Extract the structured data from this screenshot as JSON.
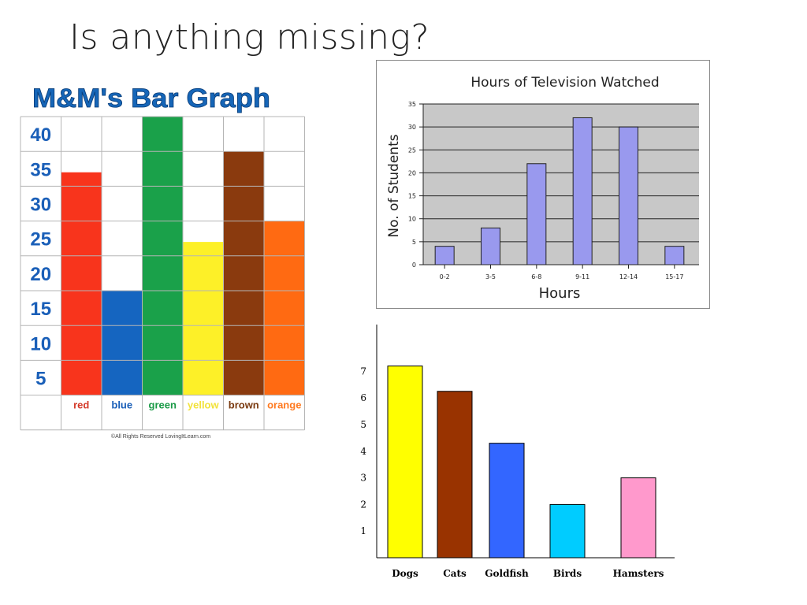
{
  "slide": {
    "title": "Is anything missing?"
  },
  "chart_data": [
    {
      "type": "bar",
      "title": "M&M's Bar Graph",
      "xlabel": "",
      "ylabel": "",
      "categories": [
        "red",
        "blue",
        "green",
        "yellow",
        "brown",
        "orange"
      ],
      "values": [
        32,
        15,
        40,
        22,
        35,
        25
      ],
      "colors": [
        "#f8341c",
        "#1565c0",
        "#1aa14a",
        "#fdf028",
        "#8a3a0e",
        "#ff6a12"
      ],
      "label_colors": [
        "#d43a2a",
        "#1a5fb8",
        "#1a9a47",
        "#f2e23a",
        "#7a3a10",
        "#ff7a20"
      ],
      "yticks": [
        "5",
        "10",
        "15",
        "20",
        "25",
        "30",
        "35",
        "40"
      ],
      "ylim": [
        0,
        40
      ],
      "title_color": "#1666b8",
      "grid": true,
      "footer": "©All Rights Reserved LovingItLearn.com"
    },
    {
      "type": "bar",
      "title": "Hours of Television Watched",
      "xlabel": "Hours",
      "ylabel": "No. of Students",
      "categories": [
        "0-2",
        "3-5",
        "6-8",
        "9-11",
        "12-14",
        "15-17"
      ],
      "values": [
        4,
        8,
        22,
        32,
        30,
        4
      ],
      "yticks": [
        "0",
        "5",
        "10",
        "15",
        "20",
        "25",
        "30",
        "35"
      ],
      "ylim": [
        0,
        35
      ],
      "bar_color": "#9999ee",
      "plot_bg": "#c8c8c8",
      "grid": true
    },
    {
      "type": "bar",
      "title": "",
      "xlabel": "",
      "ylabel": "",
      "categories": [
        "Dogs",
        "Cats",
        "Goldfish",
        "Birds",
        "Hamsters"
      ],
      "values": [
        7.2,
        6.25,
        4.3,
        2,
        3
      ],
      "colors": [
        "#ffff00",
        "#993300",
        "#3366ff",
        "#00ccff",
        "#ff99cc"
      ],
      "yticks": [
        "1",
        "2",
        "3",
        "4",
        "5",
        "6",
        "7"
      ],
      "ylim": [
        0,
        8.7
      ],
      "grid": false
    }
  ]
}
